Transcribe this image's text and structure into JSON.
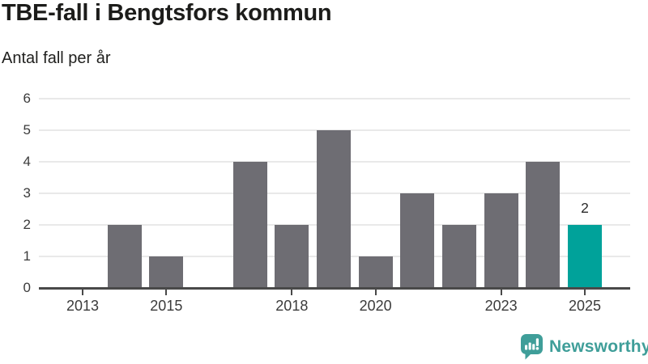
{
  "chart_data": {
    "type": "bar",
    "title": "TBE-fall i Bengtsfors kommun",
    "subtitle": "Antal fall per år",
    "xlabel": "",
    "ylabel": "",
    "categories": [
      2013,
      2014,
      2015,
      2016,
      2017,
      2018,
      2019,
      2020,
      2021,
      2022,
      2023,
      2024,
      2025
    ],
    "values": [
      0,
      2,
      1,
      0,
      4,
      2,
      5,
      1,
      3,
      2,
      3,
      4,
      2
    ],
    "x_tick_labels": [
      "2013",
      "2015",
      "2018",
      "2020",
      "2023",
      "2025"
    ],
    "y_ticks": [
      0,
      1,
      2,
      3,
      4,
      5,
      6
    ],
    "ylim": [
      0,
      6
    ],
    "grid": "horizontal",
    "legend": "none",
    "highlight_index": 12,
    "highlight_label": "2",
    "bar_color": "#6e6d73",
    "highlight_color": "#00a29a",
    "grid_color": "#e9e9e9",
    "axis_color": "#494949"
  },
  "footer": {
    "brand": "Newsworthy",
    "brand_color": "#3f9e99",
    "logo_icon": "bar-chart-speech-bubble-icon"
  }
}
